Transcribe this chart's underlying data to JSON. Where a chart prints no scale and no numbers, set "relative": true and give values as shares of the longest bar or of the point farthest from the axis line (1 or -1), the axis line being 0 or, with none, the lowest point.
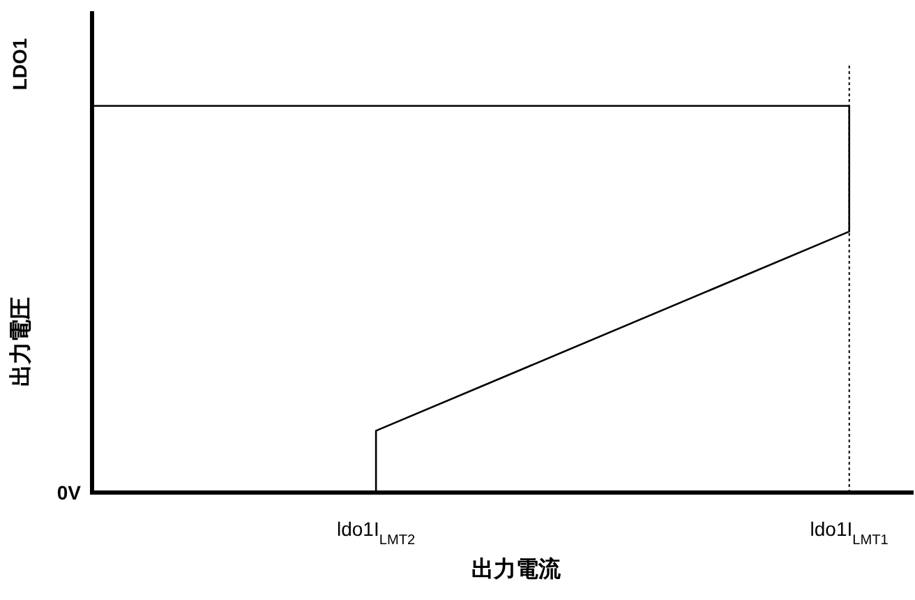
{
  "chart_data": {
    "type": "line",
    "relative": true,
    "xlabel": "出力電流",
    "ylabel": "出力電圧",
    "categories": [
      null,
      null,
      null,
      "ldo1I$_{LMT2}$",
      null,
      null,
      null,
      null,
      "ldo1I$_{LMT1}$"
    ],
    "series": [
      {
        "color": "#000000",
        "values": [
          1,
          1,
          1,
          1,
          1,
          1,
          1,
          1,
          1
        ]
      },
      {
        "color": "#000000",
        "x": [
          "ldo1I$_{LMT2}$",
          "ldo1I$_{LMT2}$",
          "ldo1I$_{LMT1}$",
          "ldo1I$_{LMT1}$"
        ],
        "values": [
          0,
          0.16,
          0.675,
          1
        ]
      }
    ],
    "ref_lines": [
      {
        "axis": "x",
        "value": "ldo1I$_{LMT1}$",
        "color": "#000000",
        "line_style": "dotted"
      }
    ],
    "annotations": [
      "LDO1",
      "0V"
    ],
    "grid": false,
    "marker": "none",
    "line_style": "solid"
  }
}
